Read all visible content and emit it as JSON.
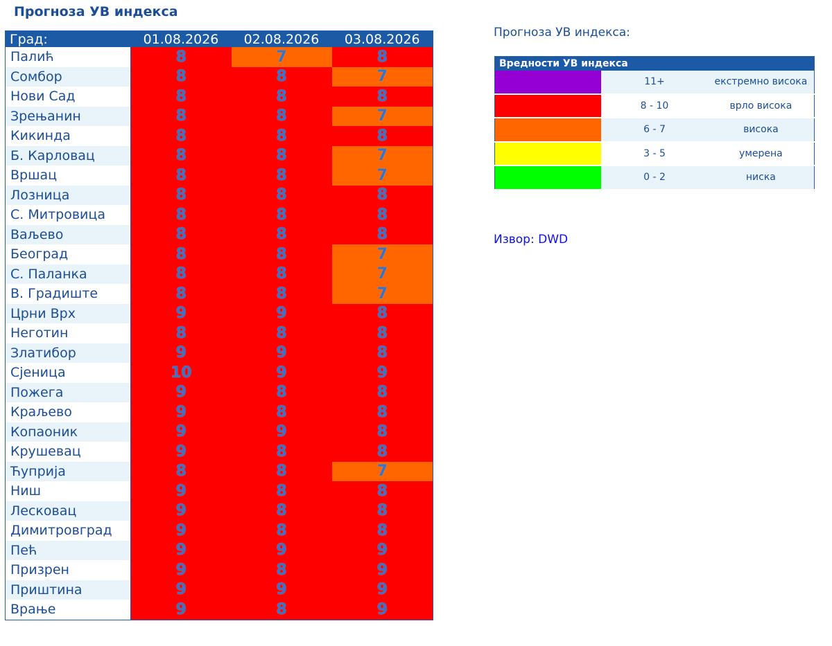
{
  "page_title": "Прогноза УВ индекса",
  "table": {
    "city_header": "Град:",
    "dates": [
      "01.08.2026",
      "02.08.2026",
      "03.08.2026"
    ],
    "rows": [
      {
        "city": "Палић",
        "values": [
          8,
          7,
          8
        ]
      },
      {
        "city": "Сомбор",
        "values": [
          8,
          8,
          7
        ]
      },
      {
        "city": "Нови Сад",
        "values": [
          8,
          8,
          8
        ]
      },
      {
        "city": "Зрењанин",
        "values": [
          8,
          8,
          7
        ]
      },
      {
        "city": "Кикинда",
        "values": [
          8,
          8,
          8
        ]
      },
      {
        "city": "Б. Карловац",
        "values": [
          8,
          8,
          7
        ]
      },
      {
        "city": "Вршац",
        "values": [
          8,
          8,
          7
        ]
      },
      {
        "city": "Лозница",
        "values": [
          8,
          8,
          8
        ]
      },
      {
        "city": "С. Митровица",
        "values": [
          8,
          8,
          8
        ]
      },
      {
        "city": "Ваљево",
        "values": [
          8,
          8,
          8
        ]
      },
      {
        "city": "Београд",
        "values": [
          8,
          8,
          7
        ]
      },
      {
        "city": "С. Паланка",
        "values": [
          8,
          8,
          7
        ]
      },
      {
        "city": "В. Градиште",
        "values": [
          8,
          8,
          7
        ]
      },
      {
        "city": "Црни Врх",
        "values": [
          9,
          9,
          8
        ]
      },
      {
        "city": "Неготин",
        "values": [
          8,
          8,
          8
        ]
      },
      {
        "city": "Златибор",
        "values": [
          9,
          9,
          8
        ]
      },
      {
        "city": "Сјеница",
        "values": [
          10,
          9,
          9
        ]
      },
      {
        "city": "Пожега",
        "values": [
          9,
          8,
          8
        ]
      },
      {
        "city": "Краљево",
        "values": [
          9,
          8,
          8
        ]
      },
      {
        "city": "Копаоник",
        "values": [
          9,
          9,
          8
        ]
      },
      {
        "city": "Крушевац",
        "values": [
          9,
          8,
          8
        ]
      },
      {
        "city": "Ћуприја",
        "values": [
          8,
          8,
          7
        ]
      },
      {
        "city": "Ниш",
        "values": [
          9,
          8,
          8
        ]
      },
      {
        "city": "Лесковац",
        "values": [
          9,
          8,
          8
        ]
      },
      {
        "city": "Димитровград",
        "values": [
          9,
          8,
          8
        ]
      },
      {
        "city": "Пећ",
        "values": [
          9,
          9,
          9
        ]
      },
      {
        "city": "Призрен",
        "values": [
          9,
          8,
          9
        ]
      },
      {
        "city": "Приштина",
        "values": [
          9,
          9,
          9
        ]
      },
      {
        "city": "Врање",
        "values": [
          9,
          8,
          9
        ]
      }
    ]
  },
  "side_title": "Прогноза УВ индекса:",
  "legend": {
    "header": "Вредности УВ индекса",
    "items": [
      {
        "range": "11+",
        "label": "екстремно висока",
        "color": "#9400d3",
        "min": 11
      },
      {
        "range": "8 - 10",
        "label": "врло висока",
        "color": "#ff0000",
        "min": 8
      },
      {
        "range": "6 - 7",
        "label": "висока",
        "color": "#ff6600",
        "min": 6
      },
      {
        "range": "3 - 5",
        "label": "умерена",
        "color": "#ffff00",
        "min": 3
      },
      {
        "range": "0 - 2",
        "label": "ниска",
        "color": "#00ff00",
        "min": 0
      }
    ]
  },
  "source": {
    "label": "Извор:",
    "link": "DWD"
  }
}
